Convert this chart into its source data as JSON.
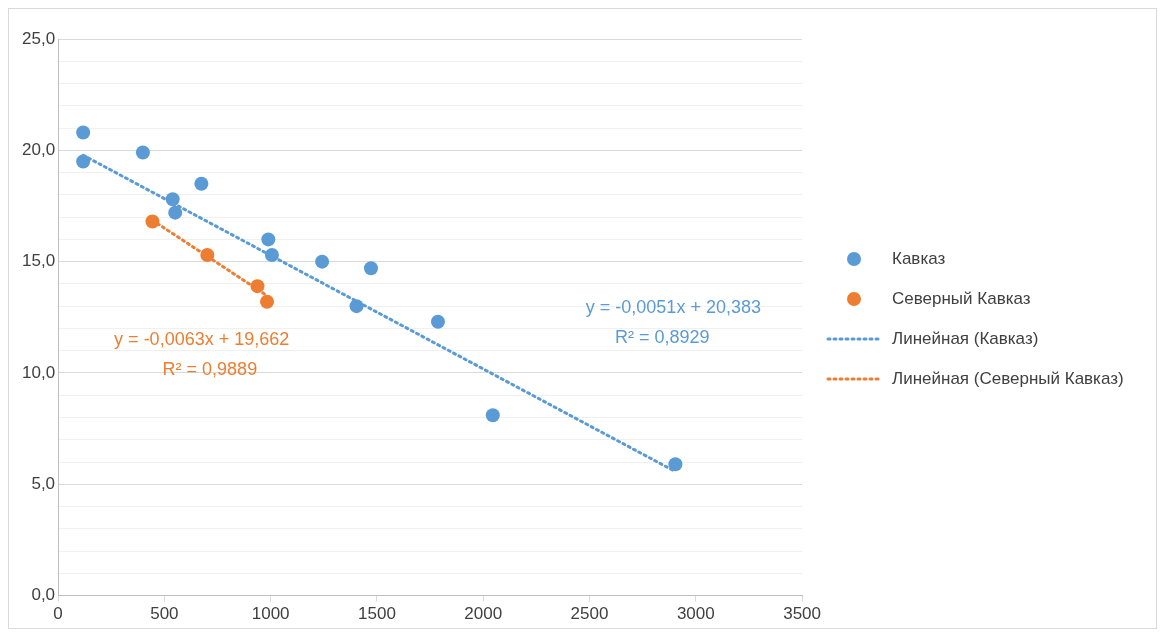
{
  "chart_data": {
    "type": "scatter",
    "xlim": [
      0,
      3500
    ],
    "xticks": [
      0,
      500,
      1000,
      1500,
      2000,
      2500,
      3000,
      3500
    ],
    "ylim": [
      0,
      25
    ],
    "yticks": [
      {
        "value": 0,
        "label": "0,0"
      },
      {
        "value": 1,
        "label": null
      },
      {
        "value": 2,
        "label": null
      },
      {
        "value": 3,
        "label": null
      },
      {
        "value": 4,
        "label": null
      },
      {
        "value": 5,
        "label": "5,0"
      },
      {
        "value": 6,
        "label": null
      },
      {
        "value": 7,
        "label": null
      },
      {
        "value": 8,
        "label": null
      },
      {
        "value": 9,
        "label": null
      },
      {
        "value": 10,
        "label": "10,0"
      },
      {
        "value": 11,
        "label": null
      },
      {
        "value": 12,
        "label": null
      },
      {
        "value": 13,
        "label": null
      },
      {
        "value": 14,
        "label": null
      },
      {
        "value": 15,
        "label": "15,0"
      },
      {
        "value": 16,
        "label": null
      },
      {
        "value": 17,
        "label": null
      },
      {
        "value": 18,
        "label": null
      },
      {
        "value": 19,
        "label": null
      },
      {
        "value": 20,
        "label": "20,0"
      },
      {
        "value": 21,
        "label": null
      },
      {
        "value": 22,
        "label": null
      },
      {
        "value": 23,
        "label": null
      },
      {
        "value": 24,
        "label": null
      },
      {
        "value": 25,
        "label": "25,0"
      }
    ],
    "grid": "y",
    "legend": "right",
    "marker": "circle",
    "series": [
      {
        "name": "Кавказ",
        "type": "scatter",
        "color": "#5b9bd5",
        "x": [
          118,
          118,
          399,
          539,
          551,
          674,
          989,
          1006,
          1242,
          1404,
          1472,
          1787,
          2045,
          2904
        ],
        "values": [
          20.8,
          19.5,
          19.9,
          17.8,
          17.2,
          18.5,
          16.0,
          15.3,
          15.0,
          13.0,
          14.7,
          12.3,
          8.1,
          5.9
        ]
      },
      {
        "name": "Северный Кавказ",
        "type": "scatter",
        "color": "#ed7d31",
        "x": [
          444,
          702,
          938,
          983
        ],
        "values": [
          16.8,
          15.3,
          13.9,
          13.2
        ]
      },
      {
        "name": "Линейная (Кавказ)",
        "type": "line",
        "line_style": "dotted",
        "marker": "none",
        "color": "#5b9bd5",
        "x": [
          118,
          2904
        ],
        "values": [
          19.78,
          5.57
        ]
      },
      {
        "name": "Линейная (Северный Кавказ)",
        "type": "line",
        "line_style": "dotted",
        "marker": "none",
        "color": "#ed7d31",
        "x": [
          444,
          983
        ],
        "values": [
          16.86,
          13.47
        ]
      }
    ],
    "annotations": [
      "y = -0,0051x + 20,383",
      "R² = 0,8929",
      "y = -0,0063x + 19,662",
      "R² = 0,9889"
    ]
  }
}
